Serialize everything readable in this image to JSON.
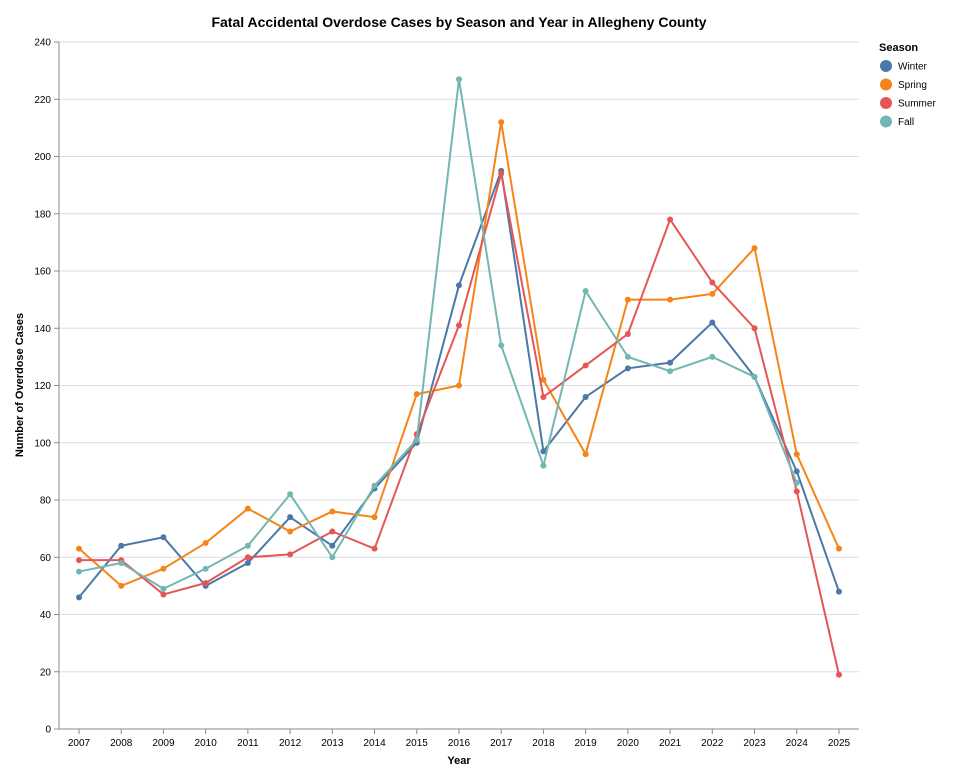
{
  "chart_data": {
    "type": "line",
    "title": "Fatal Accidental Overdose Cases by Season and Year in Allegheny County",
    "xlabel": "Year",
    "ylabel": "Number of Overdose Cases",
    "ylim": [
      0,
      240
    ],
    "y_ticks": [
      0,
      20,
      40,
      60,
      80,
      100,
      120,
      140,
      160,
      180,
      200,
      220,
      240
    ],
    "grid": true,
    "legend_title": "Season",
    "legend_position": "top-right",
    "x": [
      "2007",
      "2008",
      "2009",
      "2010",
      "2011",
      "2012",
      "2013",
      "2014",
      "2015",
      "2016",
      "2017",
      "2018",
      "2019",
      "2020",
      "2021",
      "2022",
      "2023",
      "2024",
      "2025"
    ],
    "series": [
      {
        "name": "Winter",
        "color": "#4c78a8",
        "values": [
          46,
          64,
          67,
          50,
          58,
          74,
          64,
          84,
          100,
          155,
          195,
          97,
          116,
          126,
          128,
          142,
          123,
          90,
          48
        ]
      },
      {
        "name": "Spring",
        "color": "#f58518",
        "values": [
          63,
          50,
          56,
          65,
          77,
          69,
          76,
          74,
          117,
          120,
          212,
          122,
          96,
          150,
          150,
          152,
          168,
          96,
          63
        ]
      },
      {
        "name": "Summer",
        "color": "#e45756",
        "values": [
          59,
          59,
          47,
          51,
          60,
          61,
          69,
          63,
          103,
          141,
          194,
          116,
          127,
          138,
          178,
          156,
          140,
          83,
          19
        ]
      },
      {
        "name": "Fall",
        "color": "#72b7b2",
        "values": [
          55,
          58,
          49,
          56,
          64,
          82,
          60,
          85,
          101,
          227,
          134,
          92,
          153,
          130,
          125,
          130,
          123,
          86,
          null
        ]
      }
    ]
  }
}
